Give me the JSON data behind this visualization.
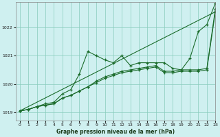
{
  "title": "Graphe pression niveau de la mer (hPa)",
  "background_color": "#cff0f0",
  "grid_color": "#88ccbb",
  "line_color": "#1a6b2a",
  "xlim": [
    -0.5,
    23
  ],
  "ylim": [
    1018.7,
    1022.9
  ],
  "yticks": [
    1019,
    1020,
    1021,
    1022
  ],
  "xticks": [
    0,
    1,
    2,
    3,
    4,
    5,
    6,
    7,
    8,
    9,
    10,
    11,
    12,
    13,
    14,
    15,
    16,
    17,
    18,
    19,
    20,
    21,
    22,
    23
  ],
  "series1": [
    [
      0,
      1019.05
    ],
    [
      1,
      1019.1
    ],
    [
      2,
      1019.2
    ],
    [
      3,
      1019.3
    ],
    [
      4,
      1019.35
    ],
    [
      5,
      1019.65
    ],
    [
      6,
      1019.8
    ],
    [
      7,
      1020.35
    ],
    [
      8,
      1021.15
    ],
    [
      9,
      1021.0
    ],
    [
      10,
      1020.85
    ],
    [
      11,
      1020.75
    ],
    [
      12,
      1021.0
    ],
    [
      13,
      1020.65
    ],
    [
      14,
      1020.75
    ],
    [
      15,
      1020.75
    ],
    [
      16,
      1020.75
    ],
    [
      17,
      1020.75
    ],
    [
      18,
      1020.55
    ],
    [
      19,
      1020.5
    ],
    [
      20,
      1020.9
    ],
    [
      21,
      1021.85
    ],
    [
      22,
      1022.1
    ],
    [
      23,
      1022.85
    ]
  ],
  "series2": [
    [
      0,
      1019.05
    ],
    [
      1,
      1019.1
    ],
    [
      2,
      1019.2
    ],
    [
      3,
      1019.25
    ],
    [
      4,
      1019.3
    ],
    [
      5,
      1019.5
    ],
    [
      6,
      1019.6
    ],
    [
      7,
      1019.75
    ],
    [
      8,
      1019.9
    ],
    [
      9,
      1020.1
    ],
    [
      10,
      1020.25
    ],
    [
      11,
      1020.35
    ],
    [
      12,
      1020.45
    ],
    [
      13,
      1020.5
    ],
    [
      14,
      1020.55
    ],
    [
      15,
      1020.6
    ],
    [
      16,
      1020.65
    ],
    [
      17,
      1020.45
    ],
    [
      18,
      1020.45
    ],
    [
      19,
      1020.5
    ],
    [
      20,
      1020.5
    ],
    [
      21,
      1020.5
    ],
    [
      22,
      1020.55
    ],
    [
      23,
      1022.65
    ]
  ],
  "series3": [
    [
      0,
      1019.05
    ],
    [
      1,
      1019.1
    ],
    [
      2,
      1019.2
    ],
    [
      3,
      1019.25
    ],
    [
      4,
      1019.3
    ],
    [
      5,
      1019.5
    ],
    [
      6,
      1019.6
    ],
    [
      7,
      1019.75
    ],
    [
      8,
      1019.9
    ],
    [
      9,
      1020.05
    ],
    [
      10,
      1020.2
    ],
    [
      11,
      1020.3
    ],
    [
      12,
      1020.4
    ],
    [
      13,
      1020.45
    ],
    [
      14,
      1020.5
    ],
    [
      15,
      1020.55
    ],
    [
      16,
      1020.6
    ],
    [
      17,
      1020.4
    ],
    [
      18,
      1020.4
    ],
    [
      19,
      1020.45
    ],
    [
      20,
      1020.45
    ],
    [
      21,
      1020.45
    ],
    [
      22,
      1020.5
    ],
    [
      23,
      1022.55
    ]
  ],
  "series4_straight": [
    [
      0,
      1019.05
    ],
    [
      23,
      1022.55
    ]
  ]
}
